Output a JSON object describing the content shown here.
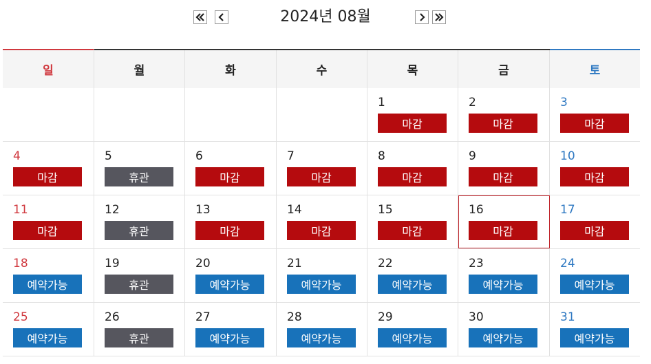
{
  "nav": {
    "title": "2024년 08월",
    "prev_year_icon": "double-chevron-left-icon",
    "prev_month_icon": "chevron-left-icon",
    "next_month_icon": "chevron-right-icon",
    "next_year_icon": "double-chevron-right-icon"
  },
  "colors": {
    "closed": "#b50b0e",
    "holiday": "#56565e",
    "open": "#1872ba",
    "sunday": "#d0383e",
    "saturday": "#2f79c2",
    "today_border": "#c0262c"
  },
  "weekdays": [
    "일",
    "월",
    "화",
    "수",
    "목",
    "금",
    "토"
  ],
  "weeks": [
    [
      {
        "day": "",
        "status": "",
        "label": ""
      },
      {
        "day": "",
        "status": "",
        "label": ""
      },
      {
        "day": "",
        "status": "",
        "label": ""
      },
      {
        "day": "",
        "status": "",
        "label": ""
      },
      {
        "day": "1",
        "status": "closed",
        "label": "마감"
      },
      {
        "day": "2",
        "status": "closed",
        "label": "마감"
      },
      {
        "day": "3",
        "status": "closed",
        "label": "마감"
      }
    ],
    [
      {
        "day": "4",
        "status": "closed",
        "label": "마감"
      },
      {
        "day": "5",
        "status": "holiday",
        "label": "휴관"
      },
      {
        "day": "6",
        "status": "closed",
        "label": "마감"
      },
      {
        "day": "7",
        "status": "closed",
        "label": "마감"
      },
      {
        "day": "8",
        "status": "closed",
        "label": "마감"
      },
      {
        "day": "9",
        "status": "closed",
        "label": "마감"
      },
      {
        "day": "10",
        "status": "closed",
        "label": "마감"
      }
    ],
    [
      {
        "day": "11",
        "status": "closed",
        "label": "마감"
      },
      {
        "day": "12",
        "status": "holiday",
        "label": "휴관"
      },
      {
        "day": "13",
        "status": "closed",
        "label": "마감"
      },
      {
        "day": "14",
        "status": "closed",
        "label": "마감"
      },
      {
        "day": "15",
        "status": "closed",
        "label": "마감"
      },
      {
        "day": "16",
        "status": "closed",
        "label": "마감",
        "today": true
      },
      {
        "day": "17",
        "status": "closed",
        "label": "마감"
      }
    ],
    [
      {
        "day": "18",
        "status": "open",
        "label": "예약가능"
      },
      {
        "day": "19",
        "status": "holiday",
        "label": "휴관"
      },
      {
        "day": "20",
        "status": "open",
        "label": "예약가능"
      },
      {
        "day": "21",
        "status": "open",
        "label": "예약가능"
      },
      {
        "day": "22",
        "status": "open",
        "label": "예약가능"
      },
      {
        "day": "23",
        "status": "open",
        "label": "예약가능"
      },
      {
        "day": "24",
        "status": "open",
        "label": "예약가능"
      }
    ],
    [
      {
        "day": "25",
        "status": "open",
        "label": "예약가능"
      },
      {
        "day": "26",
        "status": "holiday",
        "label": "휴관"
      },
      {
        "day": "27",
        "status": "open",
        "label": "예약가능"
      },
      {
        "day": "28",
        "status": "open",
        "label": "예약가능"
      },
      {
        "day": "29",
        "status": "open",
        "label": "예약가능"
      },
      {
        "day": "30",
        "status": "open",
        "label": "예약가능"
      },
      {
        "day": "31",
        "status": "open",
        "label": "예약가능"
      }
    ]
  ]
}
